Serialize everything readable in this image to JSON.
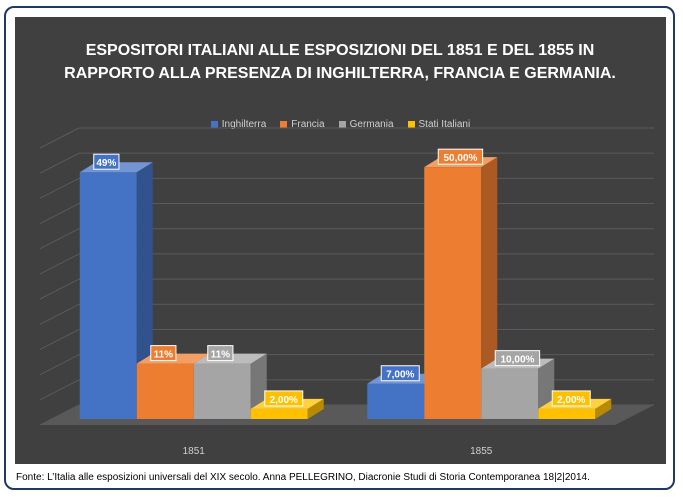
{
  "chart_data": {
    "type": "bar",
    "title": "ESPOSITORI ITALIANI ALLE ESPOSIZIONI DEL 1851 E DEL 1855 IN RAPPORTO ALLA PRESENZA DI INGHILTERRA, FRANCIA E GERMANIA.",
    "categories": [
      "1851",
      "1855"
    ],
    "series": [
      {
        "name": "Inghilterra",
        "values": [
          49,
          7
        ],
        "labels": [
          "49%",
          "7,00%"
        ],
        "color": "#4472c4"
      },
      {
        "name": "Francia",
        "values": [
          11,
          50
        ],
        "labels": [
          "11%",
          "50,00%"
        ],
        "color": "#ed7d31"
      },
      {
        "name": "Germania",
        "values": [
          11,
          10
        ],
        "labels": [
          "11%",
          "10,00%"
        ],
        "color": "#a5a5a5"
      },
      {
        "name": "Stati Italiani",
        "values": [
          2,
          2
        ],
        "labels": [
          "2,00%",
          "2,00%"
        ],
        "color": "#ffc000"
      }
    ],
    "ylim": [
      0,
      55
    ],
    "grid": true,
    "legend_position": "top",
    "three_d": true
  },
  "footer": "Fonte: L’Italia alle esposizioni universali del XIX secolo. Anna PELLEGRINO, Diacronie Studi di Storia Contemporanea 18|2|2014."
}
